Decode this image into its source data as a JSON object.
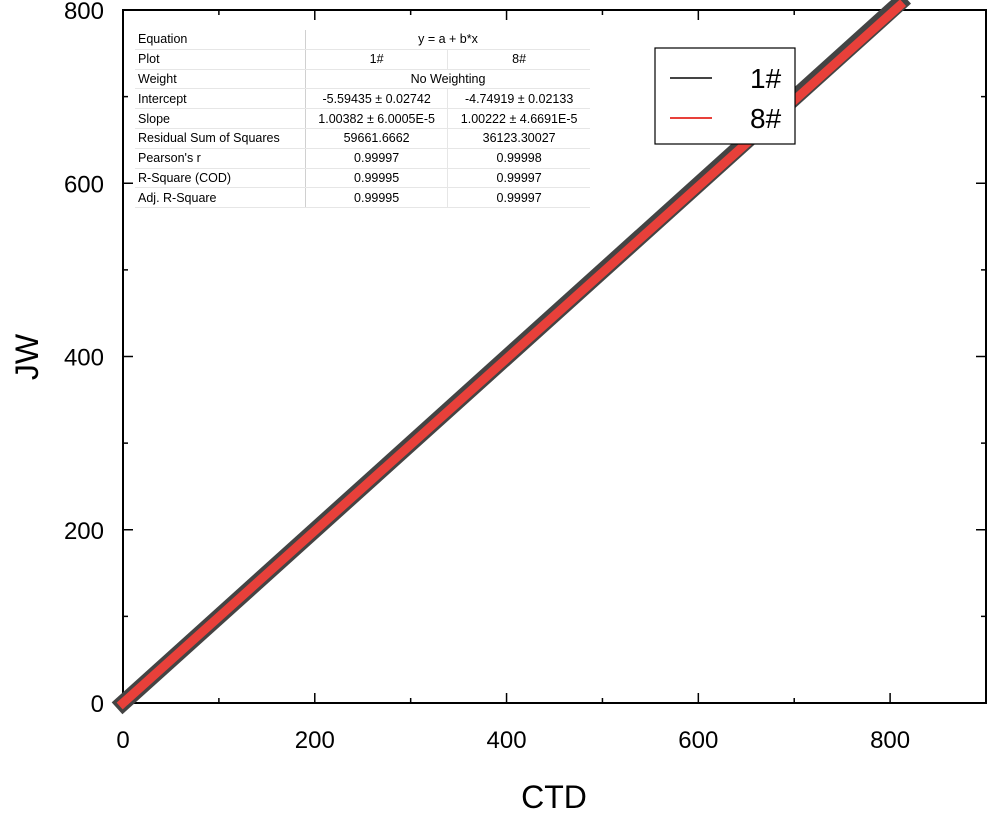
{
  "chart_data": {
    "type": "line",
    "xlabel": "CTD",
    "ylabel": "JW",
    "xlim": [
      0,
      900
    ],
    "ylim": [
      0,
      800
    ],
    "x_ticks": [
      0,
      200,
      400,
      600,
      800
    ],
    "y_ticks": [
      0,
      200,
      400,
      600,
      800
    ],
    "grid": false,
    "legend_position": "top-right",
    "series": [
      {
        "name": "1#",
        "color": "#444444",
        "x": [
          0,
          810
        ],
        "y": [
          0,
          808
        ]
      },
      {
        "name": "8#",
        "color": "#e8403a",
        "x": [
          0,
          810
        ],
        "y": [
          0,
          805
        ]
      }
    ]
  },
  "fit_table": {
    "equation_label": "Equation",
    "equation": "y = a + b*x",
    "plot_label": "Plot",
    "weight_label": "Weight",
    "weight": "No Weighting",
    "columns": [
      "1#",
      "8#"
    ],
    "rows": [
      {
        "label": "Intercept",
        "values": [
          "-5.59435 ± 0.02742",
          "-4.74919 ± 0.02133"
        ]
      },
      {
        "label": "Slope",
        "values": [
          "1.00382 ± 6.0005E-5",
          "1.00222 ± 4.6691E-5"
        ]
      },
      {
        "label": "Residual Sum of Squares",
        "values": [
          "59661.6662",
          "36123.30027"
        ]
      },
      {
        "label": "Pearson's r",
        "values": [
          "0.99997",
          "0.99998"
        ]
      },
      {
        "label": "R-Square (COD)",
        "values": [
          "0.99995",
          "0.99997"
        ]
      },
      {
        "label": "Adj. R-Square",
        "values": [
          "0.99995",
          "0.99997"
        ]
      }
    ]
  }
}
